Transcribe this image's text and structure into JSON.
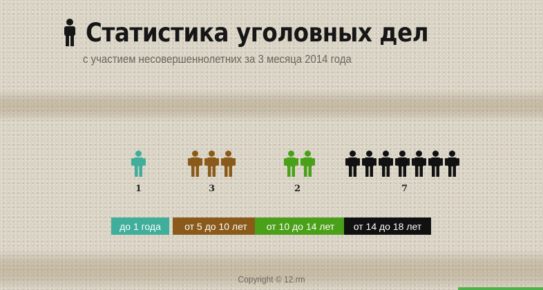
{
  "header": {
    "title": "Статистика уголовных дел",
    "subtitle": "с участием несовершеннолетних  за 3 месяца 2014 года",
    "icon": "person-icon"
  },
  "groups": [
    {
      "label": "до 1 года",
      "count": "1",
      "n": 1,
      "color": "#3fae9a"
    },
    {
      "label": "от 5 до 10 лет",
      "count": "3",
      "n": 3,
      "color": "#8a5a1a"
    },
    {
      "label": "от 10 до 14 лет",
      "count": "2",
      "n": 2,
      "color": "#4aa018"
    },
    {
      "label": "от 14 до 18 лет",
      "count": "7",
      "n": 7,
      "color": "#111111"
    }
  ],
  "footer": {
    "copyright": "Copyright © 12.rm"
  }
}
